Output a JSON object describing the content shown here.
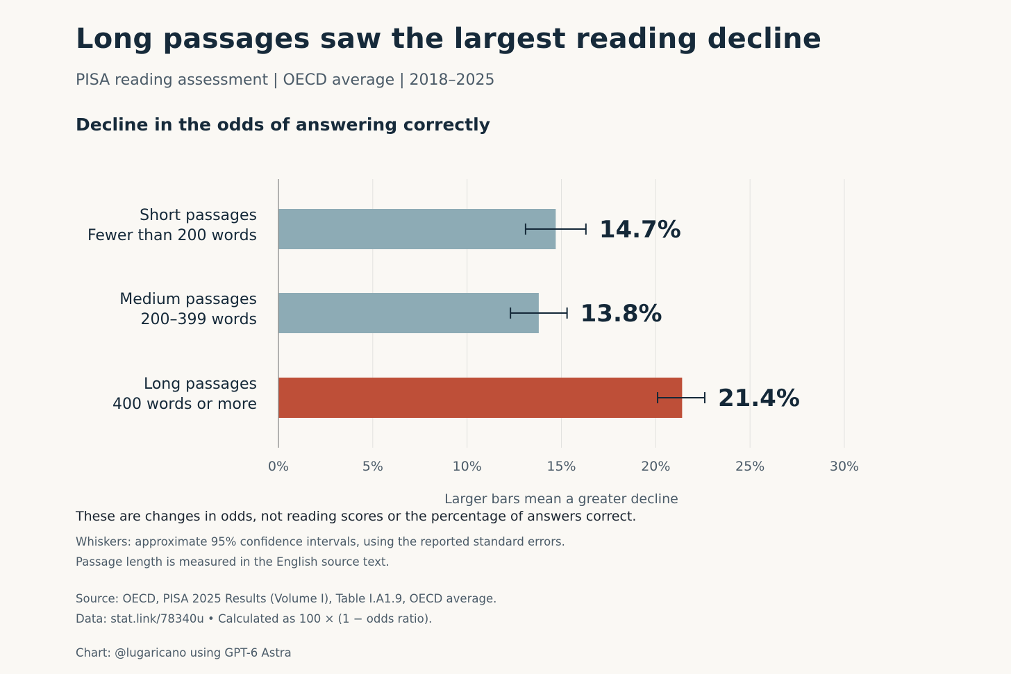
{
  "header": {
    "title": "Long passages saw the largest reading decline",
    "subtitle": "PISA reading assessment  |  OECD average  |  2018–2025",
    "chart_heading": "Decline in the odds of answering correctly"
  },
  "chart_data": {
    "type": "bar",
    "orientation": "horizontal",
    "categories": [
      [
        "Short passages",
        "Fewer than 200 words"
      ],
      [
        "Medium passages",
        "200–399 words"
      ],
      [
        "Long passages",
        "400 words or more"
      ]
    ],
    "values": [
      14.7,
      13.8,
      21.4
    ],
    "ci_low": [
      13.1,
      12.3,
      20.1
    ],
    "ci_high": [
      16.3,
      15.3,
      22.6
    ],
    "value_labels": [
      "14.7%",
      "13.8%",
      "21.4%"
    ],
    "colors": [
      "#8dabb5",
      "#8dabb5",
      "#be4f38"
    ],
    "xlim": [
      0,
      30
    ],
    "xticks": [
      0,
      5,
      10,
      15,
      20,
      25,
      30
    ],
    "xtick_labels": [
      "0%",
      "5%",
      "10%",
      "15%",
      "20%",
      "25%",
      "30%"
    ],
    "xlabel": "Larger bars mean a greater decline",
    "grid": "vertical"
  },
  "notes": {
    "main": "These are changes in odds, not reading scores or the percentage of answers correct.",
    "whiskers": "Whiskers: approximate 95% confidence intervals, using the reported standard errors.",
    "length": "Passage length is measured in the English source text.",
    "source": "Source: OECD, PISA 2025 Results (Volume I), Table I.A1.9, OECD average.",
    "data": "Data: stat.link/78340u  •  Calculated as 100 × (1 − odds ratio).",
    "credit": "Chart: @lugaricano using GPT-6 Astra"
  }
}
